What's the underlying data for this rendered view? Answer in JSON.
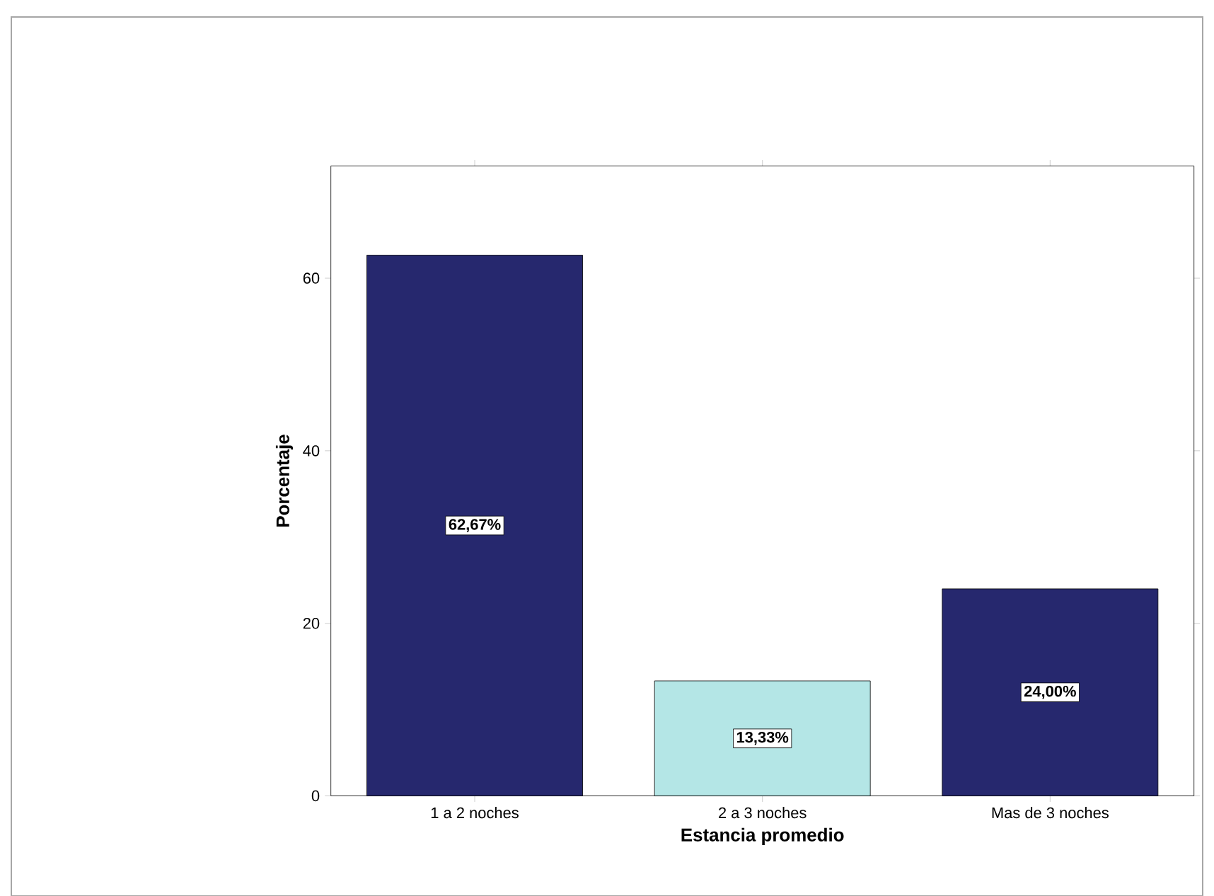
{
  "chart_data": {
    "type": "bar",
    "categories": [
      "1 a 2 noches",
      "2 a 3 noches",
      "Mas de 3 noches"
    ],
    "values": [
      62.67,
      13.33,
      24.0
    ],
    "colors": [
      "#26286e",
      "#b4e6e6",
      "#26286e"
    ],
    "value_labels": [
      "62,67%",
      "13,33%",
      "24,00%"
    ],
    "xlabel": "Estancia promedio",
    "ylabel": "Porcentaje",
    "ylim": [
      0,
      73
    ],
    "yticks": [
      0,
      20,
      40,
      60
    ]
  }
}
